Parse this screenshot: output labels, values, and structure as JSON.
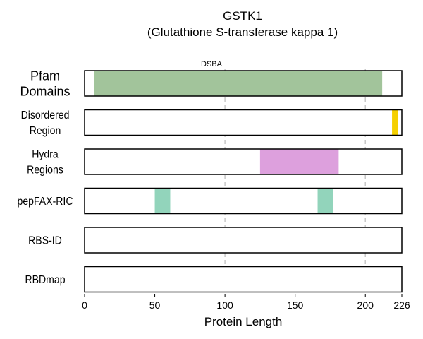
{
  "chart_data": {
    "type": "bar",
    "title": "GSTK1",
    "subtitle": "(Glutathione S-transferase kappa 1)",
    "xlabel": "Protein Length",
    "xlim": [
      0,
      226
    ],
    "xticks": [
      0,
      50,
      100,
      150,
      200,
      226
    ],
    "gridlines_at": [
      100,
      200
    ],
    "tracks": [
      {
        "label_lines": [
          "Pfam",
          "Domains"
        ],
        "segments": [
          {
            "start": 7,
            "end": 212,
            "color": "#a2c49b",
            "label": "DSBA"
          }
        ]
      },
      {
        "label_lines": [
          "Disordered",
          "Region"
        ],
        "segments": [
          {
            "start": 219,
            "end": 223,
            "color": "#f5d000"
          }
        ]
      },
      {
        "label_lines": [
          "Hydra",
          "Regions"
        ],
        "segments": [
          {
            "start": 125,
            "end": 181,
            "color": "#dda0dd"
          }
        ]
      },
      {
        "label_lines": [
          "pepFAX-RIC"
        ],
        "segments": [
          {
            "start": 50,
            "end": 61,
            "color": "#92d4bb"
          },
          {
            "start": 166,
            "end": 177,
            "color": "#92d4bb"
          }
        ]
      },
      {
        "label_lines": [
          "RBS-ID"
        ],
        "segments": []
      },
      {
        "label_lines": [
          "RBDmap"
        ],
        "segments": []
      }
    ]
  }
}
